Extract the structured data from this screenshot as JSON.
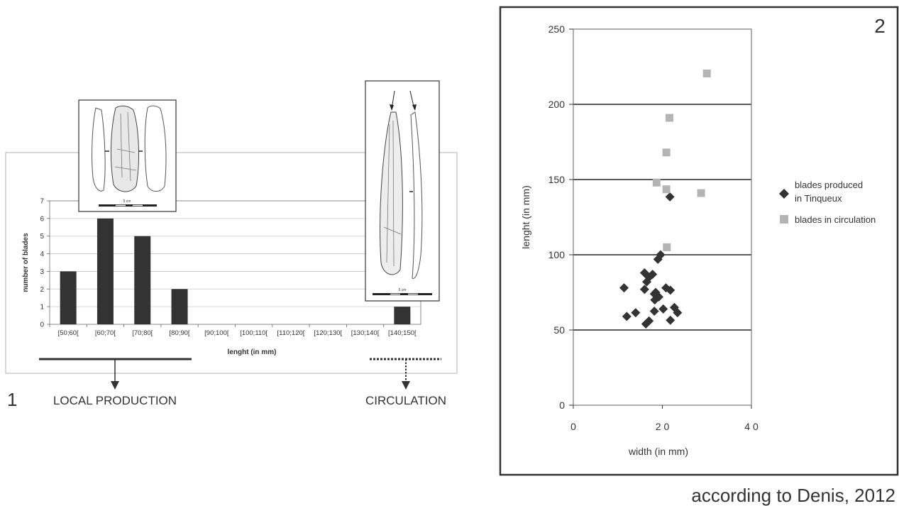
{
  "chart_data": [
    {
      "type": "bar",
      "panel_number": "1",
      "categories": [
        "[50;60[",
        "[60;70[",
        "[70;80[",
        "[80;90[",
        "[90;100[",
        "[100;110[",
        "[110;120[",
        "[120;130[",
        "[130;140[",
        "[140;150["
      ],
      "values": [
        3,
        6,
        5,
        2,
        0,
        0,
        0,
        0,
        0,
        1
      ],
      "xlabel": "lenght (in mm)",
      "ylabel": "number of blades",
      "ylim": [
        0,
        7
      ],
      "yticks": [
        0,
        1,
        2,
        3,
        4,
        5,
        6,
        7
      ],
      "grid": true,
      "bar_color": "#333333",
      "annotations": {
        "local_production": "LOCAL PRODUCTION",
        "circulation": "CIRCULATION",
        "scale_left": "5 cm",
        "scale_right": "5 cm"
      }
    },
    {
      "type": "scatter",
      "panel_number": "2",
      "xlabel": "width (in mm)",
      "ylabel": "lenght (in mm)",
      "xlim": [
        0,
        40
      ],
      "ylim": [
        0,
        250
      ],
      "xticks": [
        0,
        20,
        40
      ],
      "xtick_labels": [
        "0",
        "2 0",
        "4 0"
      ],
      "yticks": [
        0,
        50,
        100,
        150,
        200,
        250
      ],
      "grid": true,
      "legend_position": "right",
      "series": [
        {
          "name_lines": [
            "blades produced",
            "in Tinqueux"
          ],
          "marker": "diamond",
          "color": "#333333",
          "points": [
            [
              11.4,
              78
            ],
            [
              12,
              59
            ],
            [
              14,
              61.5
            ],
            [
              16,
              88
            ],
            [
              16.5,
              82
            ],
            [
              16,
              77
            ],
            [
              17,
              85
            ],
            [
              17.8,
              87
            ],
            [
              18.3,
              70
            ],
            [
              18.5,
              75
            ],
            [
              19,
              97
            ],
            [
              19.6,
              100
            ],
            [
              18.2,
              62.5
            ],
            [
              20.2,
              64
            ],
            [
              19.2,
              72
            ],
            [
              16.3,
              54
            ],
            [
              17,
              56
            ],
            [
              18.2,
              74
            ],
            [
              20.8,
              78
            ],
            [
              21.8,
              76.5
            ],
            [
              21.7,
              138.5
            ],
            [
              21.8,
              56.5
            ],
            [
              22.7,
              65
            ],
            [
              23.4,
              61.5
            ]
          ]
        },
        {
          "name": "blades in circulation",
          "marker": "square",
          "color": "#b4b4b4",
          "points": [
            [
              30,
              220.5
            ],
            [
              21.6,
              191
            ],
            [
              20.9,
              168
            ],
            [
              18.7,
              148
            ],
            [
              20.9,
              143.5
            ],
            [
              28.7,
              141
            ],
            [
              21,
              105
            ]
          ]
        }
      ]
    }
  ],
  "caption": "according to Denis, 2012"
}
